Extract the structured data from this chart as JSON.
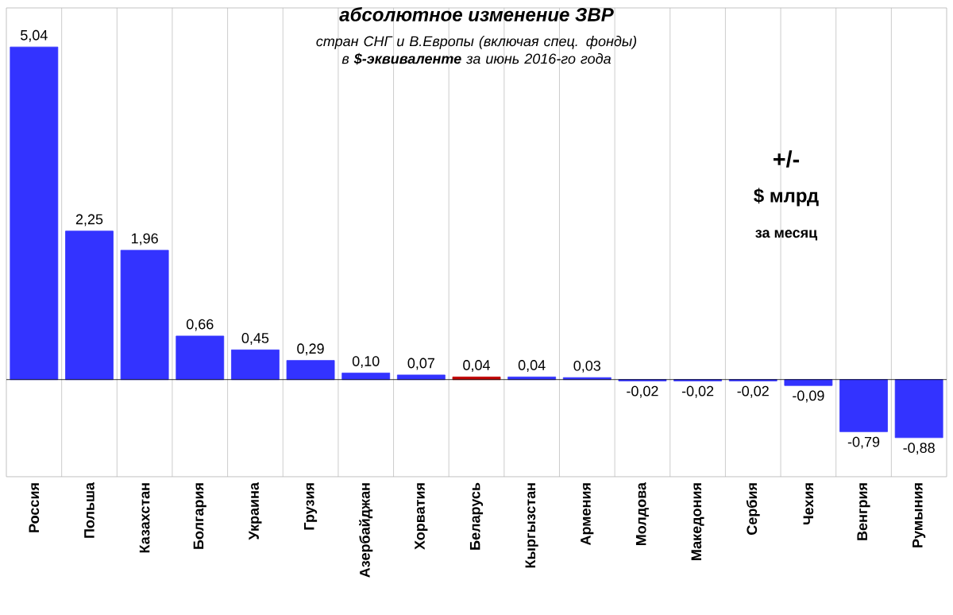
{
  "chart_data": {
    "type": "bar",
    "title": "абсолютное изменение ЗВР",
    "subtitle": "стран СНГ и В.Европы (включая спец. фонды) в **$-эквиваленте** за июнь 2016-го года",
    "categories": [
      "Россия",
      "Польша",
      "Казахстан",
      "Болгария",
      "Украина",
      "Грузия",
      "Азербайджан",
      "Хорватия",
      "Беларусь",
      "Кыргызстан",
      "Армения",
      "Молдова",
      "Македония",
      "Сербия",
      "Чехия",
      "Венгрия",
      "Румыния"
    ],
    "values": [
      5.04,
      2.25,
      1.96,
      0.66,
      0.45,
      0.29,
      0.1,
      0.07,
      0.04,
      0.04,
      0.03,
      -0.02,
      -0.02,
      -0.02,
      -0.09,
      -0.79,
      -0.88
    ],
    "value_labels": [
      "5,04",
      "2,25",
      "1,96",
      "0,66",
      "0,45",
      "0,29",
      "0,10",
      "0,07",
      "0,04",
      "0,04",
      "0,03",
      "-0,02",
      "-0,02",
      "-0,02",
      "-0,09",
      "-0,79",
      "-0,88"
    ],
    "colors": [
      "#3333ff",
      "#3333ff",
      "#3333ff",
      "#3333ff",
      "#3333ff",
      "#3333ff",
      "#3333ff",
      "#3333ff",
      "#c00000",
      "#3333ff",
      "#3333ff",
      "#3333ff",
      "#3333ff",
      "#3333ff",
      "#3333ff",
      "#3333ff",
      "#3333ff"
    ],
    "annotations": [
      "+/-",
      "$ млрд",
      "за месяц"
    ],
    "grid": "x"
  }
}
